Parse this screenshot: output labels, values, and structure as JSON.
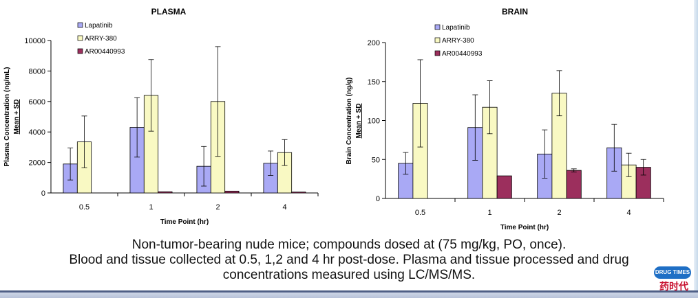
{
  "chart_data": [
    {
      "type": "bar",
      "title": "PLASMA",
      "xlabel": "Time Point (hr)",
      "ylabel_line1": "Plasma Concentration (ng/mL)",
      "ylabel_line2": "Mean + SD",
      "categories": [
        "0.5",
        "1",
        "2",
        "4"
      ],
      "ylim": [
        0,
        10000
      ],
      "yticks": [
        "0",
        "2000",
        "4000",
        "6000",
        "8000",
        "10000"
      ],
      "ytick_values": [
        0,
        2000,
        4000,
        6000,
        8000,
        10000
      ],
      "legend_position": "top-left",
      "series": [
        {
          "name": "Lapatinib",
          "color": "#a9a9f5",
          "values": [
            1900,
            4300,
            1750,
            1950
          ],
          "sd": [
            1050,
            1950,
            1300,
            800
          ]
        },
        {
          "name": "ARRY-380",
          "color": "#f9f9c3",
          "values": [
            3350,
            6400,
            6000,
            2650
          ],
          "sd": [
            1700,
            2350,
            3600,
            850
          ]
        },
        {
          "name": "AR00440993",
          "color": "#9c2f5d",
          "values": [
            0,
            80,
            120,
            60
          ],
          "sd": [
            0,
            0,
            0,
            0
          ]
        }
      ]
    },
    {
      "type": "bar",
      "title": "BRAIN",
      "xlabel": "Time Point (hr)",
      "ylabel_line1": "Brain Concentration (ng/g)",
      "ylabel_line2": "Mean + SD",
      "categories": [
        "0.5",
        "1",
        "2",
        "4"
      ],
      "ylim": [
        0,
        200
      ],
      "yticks": [
        "0",
        "50",
        "100",
        "150",
        "200"
      ],
      "ytick_values": [
        0,
        50,
        100,
        150,
        200
      ],
      "legend_position": "top-left",
      "series": [
        {
          "name": "Lapatinib",
          "color": "#a9a9f5",
          "values": [
            45,
            91,
            57,
            65
          ],
          "sd": [
            14,
            42,
            31,
            30
          ]
        },
        {
          "name": "ARRY-380",
          "color": "#f9f9c3",
          "values": [
            122,
            117,
            135,
            43
          ],
          "sd": [
            56,
            34,
            29,
            15
          ]
        },
        {
          "name": "AR00440993",
          "color": "#9c2f5d",
          "values": [
            0,
            29,
            36,
            40
          ],
          "sd": [
            0,
            0,
            2,
            10
          ]
        }
      ]
    }
  ],
  "caption": {
    "line1": "Non-tumor-bearing nude mice; compounds dosed at (75 mg/kg, PO, once).",
    "line2": "Blood and tissue collected at 0.5, 1,2 and 4 hr post-dose. Plasma and tissue processed and drug",
    "line3": "concentrations measured using LC/MS/MS."
  },
  "watermark": {
    "badge": "DRUG TIMES",
    "chinese": "药时代"
  }
}
